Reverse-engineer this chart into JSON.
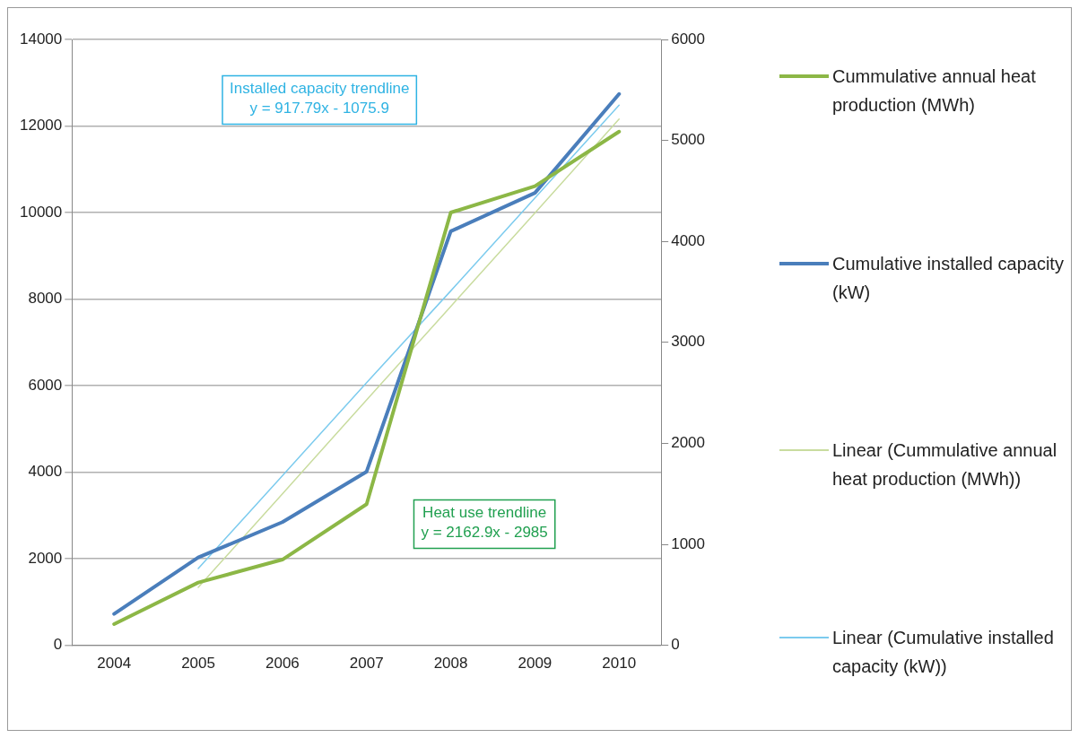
{
  "chart_data": {
    "type": "line",
    "categories": [
      "2004",
      "2005",
      "2006",
      "2007",
      "2008",
      "2009",
      "2010"
    ],
    "series": [
      {
        "name": "Cummulative annual heat production (MWh)",
        "color": "#8cb746",
        "values": [
          490,
          1450,
          1980,
          3260,
          10000,
          10610,
          11870
        ]
      },
      {
        "name": "Cumulative installed capacity (kW)",
        "color": "#4a7ebb",
        "axis": "y2",
        "values": [
          310,
          870,
          1220,
          1720,
          4100,
          4480,
          5460
        ]
      },
      {
        "name": "Linear (Cummulative annual heat production (MWh))",
        "color": "#c9dc9f",
        "values": [
          null,
          1340,
          3500,
          5670,
          7830,
          9990,
          12160
        ]
      },
      {
        "name": "Linear (Cumulative installed capacity (kW))",
        "color": "#7ccbee",
        "axis": "y2",
        "values": [
          null,
          760,
          1680,
          2600,
          3510,
          4430,
          5350
        ]
      }
    ],
    "ylim": [
      0,
      14000
    ],
    "yticks": [
      0,
      2000,
      4000,
      6000,
      8000,
      10000,
      12000,
      14000
    ],
    "y2lim": [
      0,
      6000
    ],
    "y2ticks": [
      0,
      1000,
      2000,
      3000,
      4000,
      5000,
      6000
    ],
    "annotations": [
      "Installed capacity trendline\ny = 917.79x - 1075.9",
      "Heat use trendline\ny = 2162.9x - 2985"
    ],
    "grid": "y",
    "legend": "right",
    "marker": "none"
  }
}
